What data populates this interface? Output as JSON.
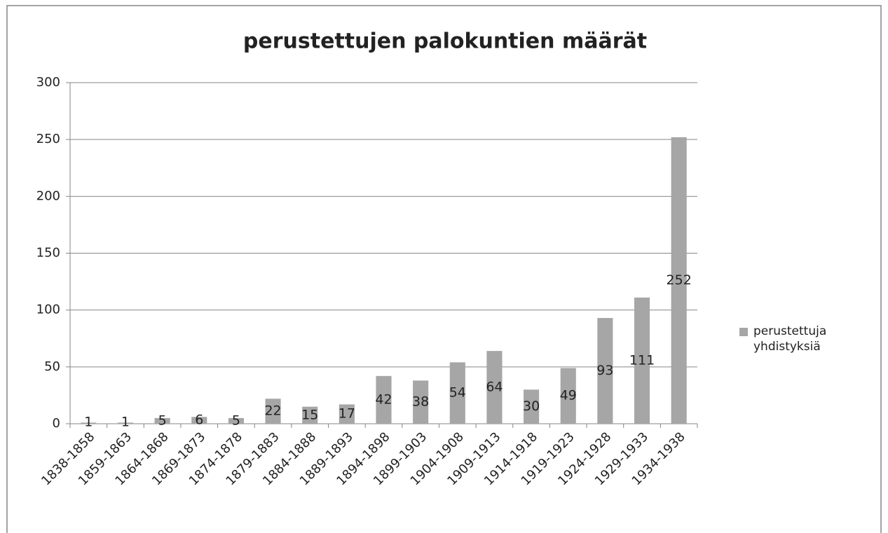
{
  "chart_data": {
    "type": "bar",
    "title": "perustettujen palokuntien määrät",
    "categories": [
      "1838-1858",
      "1859-1863",
      "1864-1868",
      "1869-1873",
      "1874-1878",
      "1879-1883",
      "1884-1888",
      "1889-1893",
      "1894-1898",
      "1899-1903",
      "1904-1908",
      "1909-1913",
      "1914-1918",
      "1919-1923",
      "1924-1928",
      "1929-1933",
      "1934-1938"
    ],
    "series": [
      {
        "name": "perustettuja yhdistyksiä",
        "color": "#a6a6a6",
        "values": [
          1,
          1,
          5,
          6,
          5,
          22,
          15,
          17,
          42,
          38,
          54,
          64,
          30,
          49,
          93,
          111,
          252
        ]
      }
    ],
    "ylim": [
      0,
      300
    ],
    "yticks": [
      0,
      50,
      100,
      150,
      200,
      250,
      300
    ],
    "grid": true,
    "legend": "right"
  }
}
